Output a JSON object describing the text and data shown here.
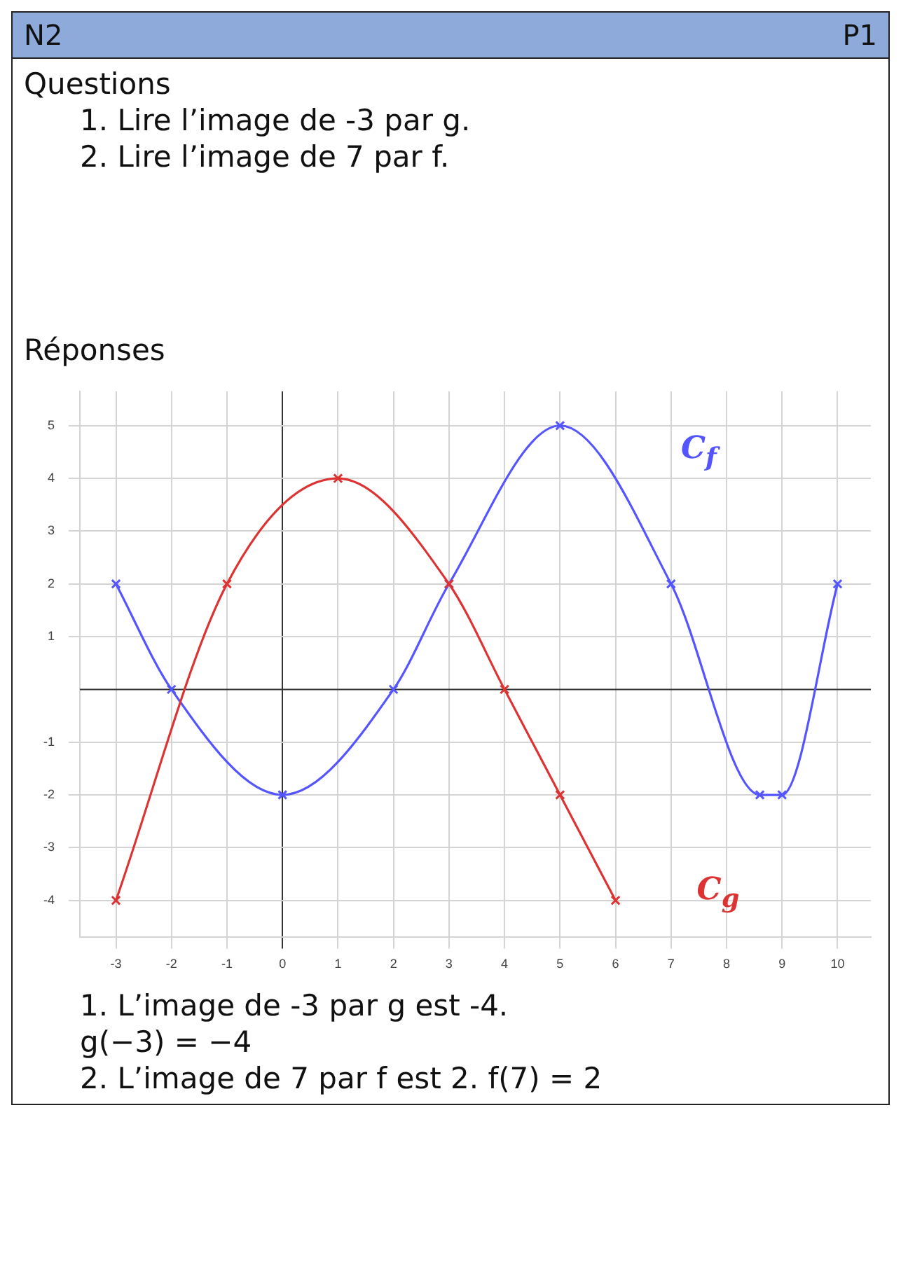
{
  "chart_data": {
    "type": "line",
    "title": "N2",
    "subtitle": "P1",
    "annotations": [
      "Questions",
      "1. Lire l’image de -3 par g.",
      "2. Lire l’image de 7 par f.",
      "Réponses",
      "1. L’image de -3 par g est -4.",
      "g(−3) = −4",
      "2. L’image de 7 par f est 2. f(7) = 2"
    ],
    "series": [
      {
        "name": "C$_{f}$",
        "color": "#5555ff",
        "x": [
          -3,
          -2,
          0,
          2,
          3,
          5,
          7,
          8.6,
          9,
          10
        ],
        "values": [
          2,
          0,
          -2,
          0,
          2,
          5,
          2,
          -2,
          -2,
          2
        ]
      },
      {
        "name": "C$_{g}$",
        "color": "#dd3333",
        "x": [
          -3,
          -1,
          1,
          3,
          4,
          5,
          6
        ],
        "values": [
          -4,
          2,
          4,
          2,
          0,
          -2,
          -4
        ]
      }
    ],
    "xlim": [
      -3.65,
      10.6
    ],
    "ylim": [
      -4.7,
      5.65
    ],
    "xticks": [
      -3,
      -2,
      -1,
      0,
      1,
      2,
      3,
      4,
      5,
      6,
      7,
      8,
      9,
      10
    ],
    "yticks": [
      -4,
      -3,
      -2,
      -1,
      1,
      2,
      3,
      4,
      5
    ],
    "grid": true,
    "legend": false,
    "marker": "cross",
    "line_style": "solid"
  }
}
